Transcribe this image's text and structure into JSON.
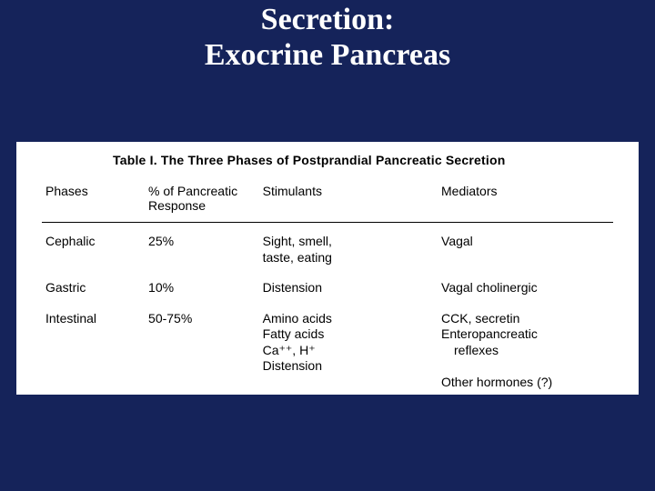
{
  "background_color": "#15235a",
  "title": {
    "line1": "Secretion:",
    "line2": "Exocrine Pancreas",
    "color": "#ffffff",
    "font_family": "Times New Roman",
    "font_weight": "bold",
    "font_size_pt": 26
  },
  "table": {
    "type": "table",
    "caption": "Table I.  The Three Phases of Postprandial Pancreatic Secretion",
    "caption_fontsize": 14,
    "caption_fontweight": "bold",
    "panel_background": "#ffffff",
    "text_color": "#000000",
    "border_color": "#000000",
    "font_family": "Arial",
    "body_fontsize": 14,
    "columns": [
      {
        "key": "phase",
        "label": "Phases",
        "width_pct": 18
      },
      {
        "key": "pct",
        "label": "% of Pancreatic\nResponse",
        "width_pct": 20
      },
      {
        "key": "stimulants",
        "label": "Stimulants",
        "width_pct": 30
      },
      {
        "key": "mediators",
        "label": "Mediators",
        "width_pct": 32
      }
    ],
    "rows": [
      {
        "phase": "Cephalic",
        "pct": "25%",
        "stimulants": "Sight, smell,\ntaste, eating",
        "mediators": "Vagal"
      },
      {
        "phase": "Gastric",
        "pct": "10%",
        "stimulants": "Distension",
        "mediators": "Vagal cholinergic"
      },
      {
        "phase": "Intestinal",
        "pct": "50-75%",
        "stimulants": "Amino acids\nFatty acids\nCa⁺⁺, H⁺\nDistension",
        "mediators": "CCK, secretin\nEnteropancreatic\n  reflexes\nOther hormones (?)"
      }
    ]
  }
}
